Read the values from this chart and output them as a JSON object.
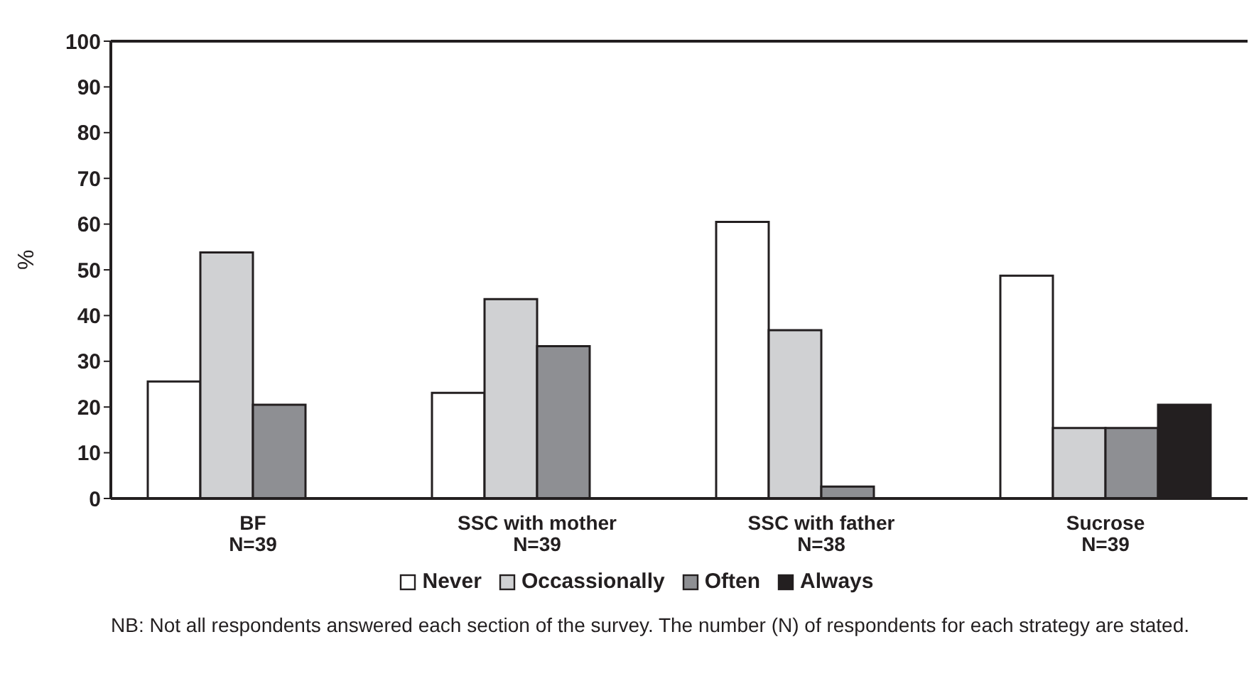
{
  "chart_data": {
    "type": "bar",
    "ylabel": "%",
    "categories": [
      "BF\nN=39",
      "SSC with mother\nN=39",
      "SSC with father\nN=38",
      "Sucrose\nN=39"
    ],
    "series": [
      {
        "name": "Never",
        "color": "#ffffff",
        "values": [
          25.6,
          23.1,
          60.5,
          48.7
        ]
      },
      {
        "name": "Occassionally",
        "color": "#d0d1d3",
        "values": [
          53.8,
          43.6,
          36.8,
          15.4
        ]
      },
      {
        "name": "Often",
        "color": "#8e8f93",
        "values": [
          20.5,
          33.3,
          2.6,
          15.4
        ]
      },
      {
        "name": "Always",
        "color": "#231f20",
        "values": [
          null,
          null,
          null,
          20.5
        ]
      }
    ],
    "ylim": [
      0,
      100
    ],
    "yticks": [
      0,
      10,
      20,
      30,
      40,
      50,
      60,
      70,
      80,
      90,
      100
    ],
    "grid": false,
    "legend": "bottom",
    "annotations": [
      "NB: Not all respondents answered each section of the survey. The number (N) of respondents for each strategy are stated."
    ]
  }
}
